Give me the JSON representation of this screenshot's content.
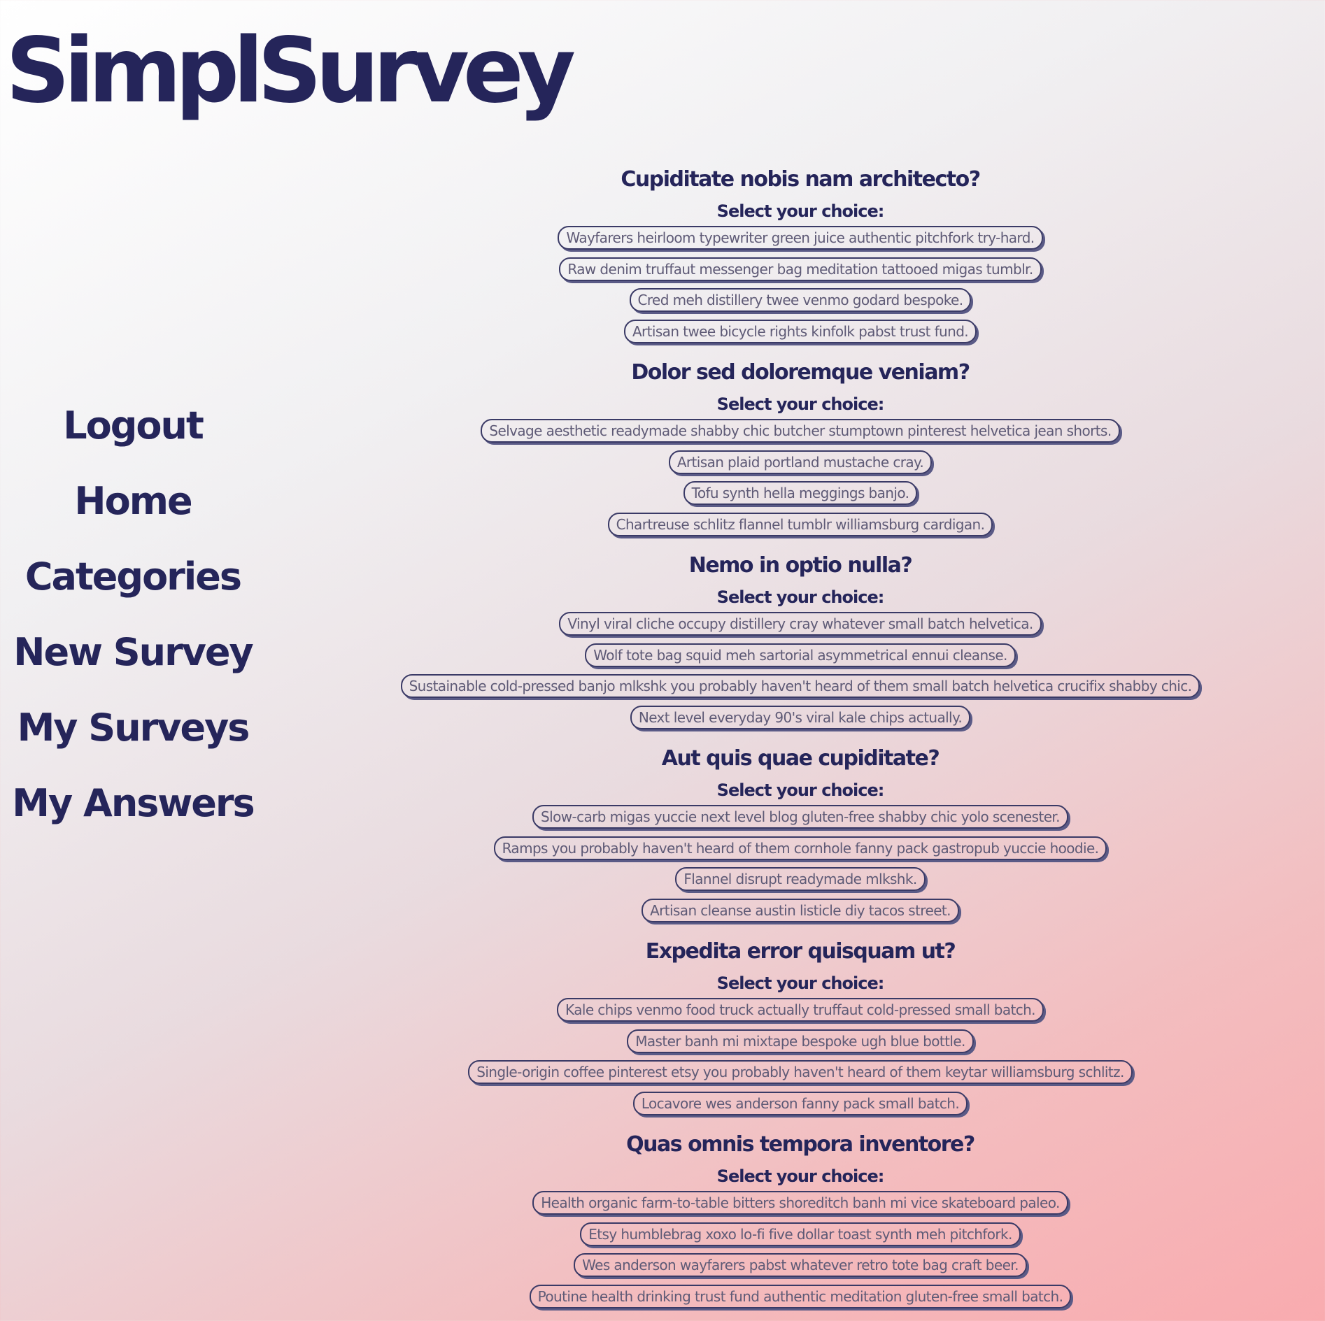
{
  "brand": {
    "name": "SimplSurvey"
  },
  "nav": {
    "items": [
      {
        "label": "Logout"
      },
      {
        "label": "Home"
      },
      {
        "label": "Categories"
      },
      {
        "label": "New Survey"
      },
      {
        "label": "My Surveys"
      },
      {
        "label": "My Answers"
      }
    ]
  },
  "questions": [
    {
      "title": "Cupiditate nobis nam architecto?",
      "prompt": "Select your choice:",
      "choices": [
        "Wayfarers heirloom typewriter green juice authentic pitchfork try-hard.",
        "Raw denim truffaut messenger bag meditation tattooed migas tumblr.",
        "Cred meh distillery twee venmo godard bespoke.",
        "Artisan twee bicycle rights kinfolk pabst trust fund."
      ]
    },
    {
      "title": "Dolor sed doloremque veniam?",
      "prompt": "Select your choice:",
      "choices": [
        "Selvage aesthetic readymade shabby chic butcher stumptown pinterest helvetica jean shorts.",
        "Artisan plaid portland mustache cray.",
        "Tofu synth hella meggings banjo.",
        "Chartreuse schlitz flannel tumblr williamsburg cardigan."
      ]
    },
    {
      "title": "Nemo in optio nulla?",
      "prompt": "Select your choice:",
      "choices": [
        "Vinyl viral cliche occupy distillery cray whatever small batch helvetica.",
        "Wolf tote bag squid meh sartorial asymmetrical ennui cleanse.",
        "Sustainable cold-pressed banjo mlkshk you probably haven't heard of them small batch helvetica crucifix shabby chic.",
        "Next level everyday 90's viral kale chips actually."
      ]
    },
    {
      "title": "Aut quis quae cupiditate?",
      "prompt": "Select your choice:",
      "choices": [
        "Slow-carb migas yuccie next level blog gluten-free shabby chic yolo scenester.",
        "Ramps you probably haven't heard of them cornhole fanny pack gastropub yuccie hoodie.",
        "Flannel disrupt readymade mlkshk.",
        "Artisan cleanse austin listicle diy tacos street."
      ]
    },
    {
      "title": "Expedita error quisquam ut?",
      "prompt": "Select your choice:",
      "choices": [
        "Kale chips venmo food truck actually truffaut cold-pressed small batch.",
        "Master banh mi mixtape bespoke ugh blue bottle.",
        "Single-origin coffee pinterest etsy you probably haven't heard of them keytar williamsburg schlitz.",
        "Locavore wes anderson fanny pack small batch."
      ]
    },
    {
      "title": "Quas omnis tempora inventore?",
      "prompt": "Select your choice:",
      "choices": [
        "Health organic farm-to-table bitters shoreditch banh mi vice skateboard paleo.",
        "Etsy humblebrag xoxo lo-fi five dollar toast synth meh pitchfork.",
        "Wes anderson wayfarers pabst whatever retro tote bag craft beer.",
        "Poutine health drinking trust fund authentic meditation gluten-free small batch."
      ]
    }
  ],
  "colors": {
    "primary_text": "#25255a",
    "choice_text": "#5e5a76",
    "gradient_start": "#ffffff",
    "gradient_end": "#f9abaf"
  }
}
